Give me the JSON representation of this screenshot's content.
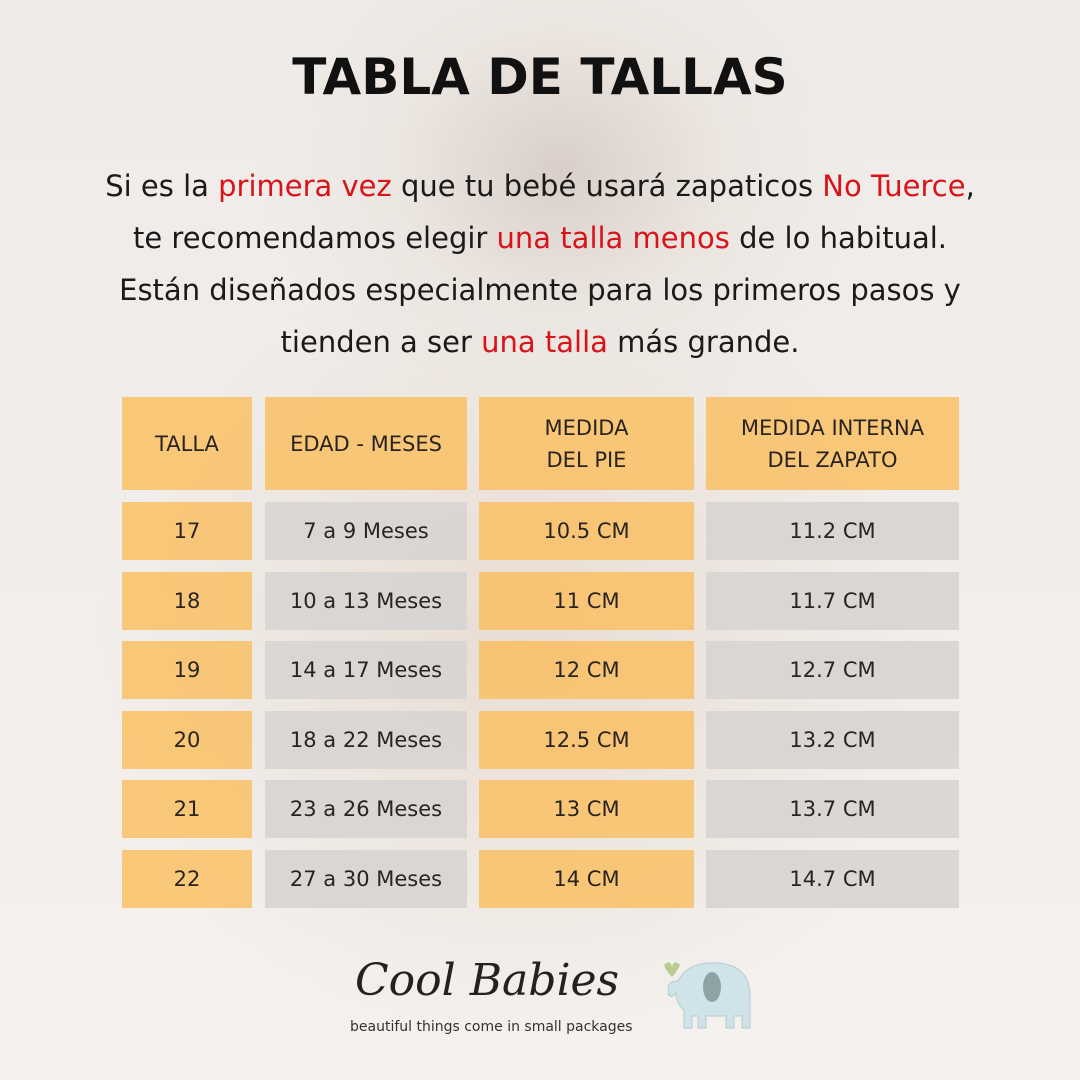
{
  "title": "TABLA DE TALLAS",
  "intro": {
    "l1": [
      "Si es la ",
      "primera vez",
      " que tu bebé usará zapaticos ",
      "No Tuerce",
      ","
    ],
    "l2": [
      "te recomendamos elegir ",
      "una talla menos",
      " de lo habitual."
    ],
    "l3": "Están diseñados especialmente para los primeros pasos y",
    "l4": [
      "tienden a ser ",
      "una talla",
      " más grande."
    ]
  },
  "table": {
    "headers": [
      "TALLA",
      "EDAD - MESES",
      "MEDIDA\nDEL PIE",
      "MEDIDA INTERNA\nDEL ZAPATO"
    ],
    "rows": [
      [
        "17",
        "7 a 9 Meses",
        "10.5 CM",
        "11.2 CM"
      ],
      [
        "18",
        "10 a 13 Meses",
        "11 CM",
        "11.7 CM"
      ],
      [
        "19",
        "14 a 17 Meses",
        "12 CM",
        "12.7 CM"
      ],
      [
        "20",
        "18 a 22 Meses",
        "12.5 CM",
        "13.2 CM"
      ],
      [
        "21",
        "23 a 26 Meses",
        "13 CM",
        "13.7 CM"
      ],
      [
        "22",
        "27 a 30 Meses",
        "14 CM",
        "14.7 CM"
      ]
    ]
  },
  "logo": {
    "name": "Cool Babies",
    "tagline": "beautiful things come in small packages"
  },
  "colors": {
    "accent_red": "#d8141b",
    "header_orange": "#fabe5f",
    "gray": "#d7d4d1"
  }
}
